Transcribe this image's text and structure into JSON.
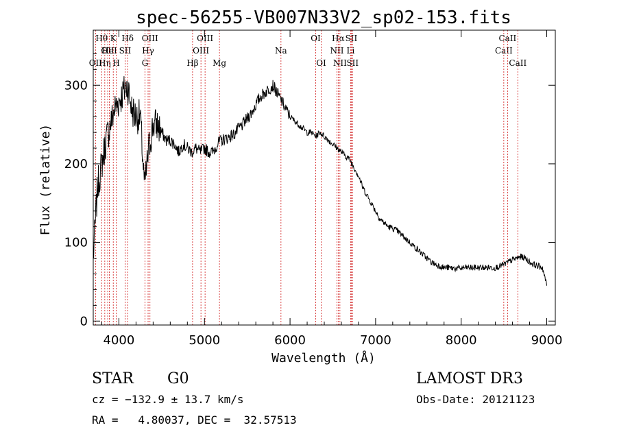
{
  "chart_data": {
    "type": "line",
    "title": "spec-56255-VB007N33V2_sp02-153.fits",
    "xlabel": "Wavelength (Å)",
    "ylabel": "Flux (relative)",
    "xlim": [
      3700,
      9100
    ],
    "ylim": [
      -5,
      370
    ],
    "xticks": [
      4000,
      5000,
      6000,
      7000,
      8000,
      9000
    ],
    "yticks": [
      0,
      100,
      200,
      300
    ],
    "grid": false,
    "series": [
      {
        "name": "flux",
        "x": [
          3700,
          3750,
          3800,
          3850,
          3900,
          3950,
          4000,
          4050,
          4100,
          4150,
          4200,
          4250,
          4300,
          4350,
          4400,
          4450,
          4500,
          4550,
          4600,
          4650,
          4700,
          4750,
          4800,
          4850,
          4900,
          4950,
          5000,
          5050,
          5100,
          5150,
          5200,
          5250,
          5300,
          5350,
          5400,
          5450,
          5500,
          5550,
          5600,
          5650,
          5700,
          5750,
          5800,
          5850,
          5900,
          5950,
          6000,
          6050,
          6100,
          6150,
          6200,
          6250,
          6300,
          6350,
          6400,
          6450,
          6500,
          6550,
          6600,
          6650,
          6700,
          6750,
          6800,
          6850,
          6900,
          6950,
          7000,
          7050,
          7100,
          7150,
          7200,
          7250,
          7300,
          7350,
          7400,
          7450,
          7500,
          7550,
          7600,
          7650,
          7700,
          7750,
          7800,
          7850,
          7900,
          7950,
          8000,
          8050,
          8100,
          8150,
          8200,
          8250,
          8300,
          8350,
          8400,
          8450,
          8500,
          8550,
          8600,
          8650,
          8700,
          8750,
          8800,
          8850,
          8900,
          8950,
          9000
        ],
        "values": [
          80,
          170,
          200,
          230,
          250,
          270,
          280,
          290,
          300,
          270,
          260,
          260,
          170,
          220,
          250,
          250,
          240,
          230,
          230,
          225,
          215,
          225,
          220,
          215,
          220,
          215,
          220,
          215,
          215,
          225,
          230,
          232,
          235,
          238,
          245,
          250,
          258,
          265,
          275,
          285,
          290,
          295,
          300,
          290,
          280,
          270,
          260,
          255,
          250,
          245,
          240,
          240,
          235,
          240,
          235,
          230,
          225,
          220,
          215,
          210,
          205,
          195,
          185,
          170,
          160,
          150,
          140,
          130,
          125,
          120,
          118,
          115,
          110,
          105,
          100,
          95,
          90,
          85,
          80,
          75,
          72,
          70,
          68,
          68,
          67,
          67,
          67,
          68,
          68,
          68,
          68,
          68,
          68,
          68,
          68,
          70,
          72,
          75,
          78,
          80,
          82,
          80,
          75,
          72,
          70,
          68,
          45
        ]
      }
    ],
    "spectral_lines": [
      {
        "label": "OII",
        "x": 3727,
        "row": 3
      },
      {
        "label": "Hθ",
        "x": 3798,
        "row": 1
      },
      {
        "label": "Hη",
        "x": 3835,
        "row": 3
      },
      {
        "label": "OII",
        "x": 3869,
        "row": 2
      },
      {
        "label": "HeI",
        "x": 3889,
        "row": 2
      },
      {
        "label": "K",
        "x": 3934,
        "row": 1
      },
      {
        "label": "H",
        "x": 3969,
        "row": 3
      },
      {
        "label": "SII",
        "x": 4072,
        "row": 2
      },
      {
        "label": "Hδ",
        "x": 4102,
        "row": 1
      },
      {
        "label": "G",
        "x": 4305,
        "row": 3
      },
      {
        "label": "Hγ",
        "x": 4341,
        "row": 2
      },
      {
        "label": "OIII",
        "x": 4363,
        "row": 1
      },
      {
        "label": "Hβ",
        "x": 4861,
        "row": 3
      },
      {
        "label": "OIII",
        "x": 4959,
        "row": 2
      },
      {
        "label": "OIII",
        "x": 5007,
        "row": 1
      },
      {
        "label": "Mg",
        "x": 5175,
        "row": 3
      },
      {
        "label": "Na",
        "x": 5894,
        "row": 2
      },
      {
        "label": "OI",
        "x": 6300,
        "row": 1
      },
      {
        "label": "OI",
        "x": 6364,
        "row": 3
      },
      {
        "label": "NII",
        "x": 6548,
        "row": 2
      },
      {
        "label": "Hα",
        "x": 6563,
        "row": 1
      },
      {
        "label": "NII",
        "x": 6583,
        "row": 3
      },
      {
        "label": "Li",
        "x": 6708,
        "row": 2
      },
      {
        "label": "SII",
        "x": 6716,
        "row": 1
      },
      {
        "label": "SII",
        "x": 6731,
        "row": 3
      },
      {
        "label": "CaII",
        "x": 8498,
        "row": 2
      },
      {
        "label": "CaII",
        "x": 8542,
        "row": 1
      },
      {
        "label": "CaII",
        "x": 8662,
        "row": 3
      }
    ]
  },
  "info": {
    "object_class": "STAR",
    "subclass": "G0",
    "survey": "LAMOST DR3",
    "redshift": "cz = −132.9 ± 13.7 km/s",
    "obs_date": "Obs-Date: 20121123",
    "coords": "RA =   4.80037, DEC =  32.57513"
  }
}
